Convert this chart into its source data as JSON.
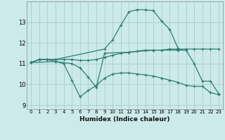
{
  "xlabel": "Humidex (Indice chaleur)",
  "bg_color": "#cceaea",
  "grid_color": "#aacccc",
  "line_color": "#2e7d72",
  "xlim": [
    -0.5,
    23.5
  ],
  "ylim": [
    8.8,
    14.0
  ],
  "yticks": [
    9,
    10,
    11,
    12,
    13
  ],
  "xticks": [
    0,
    1,
    2,
    3,
    4,
    5,
    6,
    7,
    8,
    9,
    10,
    11,
    12,
    13,
    14,
    15,
    16,
    17,
    18,
    19,
    20,
    21,
    22,
    23
  ],
  "series": [
    {
      "x": [
        0,
        1,
        2,
        3,
        9,
        10,
        11,
        12,
        13,
        14,
        15,
        16,
        17,
        18
      ],
      "y": [
        11.05,
        11.2,
        11.2,
        11.2,
        11.7,
        12.15,
        12.85,
        13.5,
        13.6,
        13.6,
        13.55,
        13.05,
        12.65,
        11.75
      ]
    },
    {
      "x": [
        0,
        1,
        2,
        3,
        4,
        5,
        6,
        7,
        8,
        9,
        10,
        11,
        12,
        13,
        14,
        15,
        16,
        17,
        18,
        19,
        20,
        21,
        22,
        23
      ],
      "y": [
        11.05,
        11.2,
        11.2,
        11.2,
        11.2,
        11.2,
        11.15,
        11.15,
        11.2,
        11.3,
        11.4,
        11.5,
        11.55,
        11.6,
        11.65,
        11.65,
        11.65,
        11.7,
        11.7,
        11.7,
        11.7,
        11.7,
        11.7,
        11.7
      ]
    },
    {
      "x": [
        0,
        1,
        2,
        3,
        4,
        5,
        6,
        7,
        8,
        9,
        10,
        11,
        12,
        13,
        14,
        15,
        16,
        17,
        18,
        19,
        20,
        21,
        22,
        23
      ],
      "y": [
        11.05,
        11.2,
        11.2,
        11.1,
        11.0,
        10.2,
        9.4,
        9.7,
        9.95,
        10.3,
        10.5,
        10.55,
        10.55,
        10.5,
        10.45,
        10.4,
        10.3,
        10.2,
        10.1,
        9.95,
        9.9,
        9.9,
        9.6,
        9.5
      ]
    },
    {
      "x": [
        0,
        3,
        5,
        6,
        7,
        8,
        9,
        12,
        15,
        18,
        19,
        20,
        21,
        22,
        23
      ],
      "y": [
        11.05,
        11.1,
        11.0,
        10.8,
        10.35,
        9.85,
        11.5,
        11.55,
        11.65,
        11.65,
        11.65,
        11.0,
        10.15,
        10.15,
        9.55
      ]
    }
  ]
}
